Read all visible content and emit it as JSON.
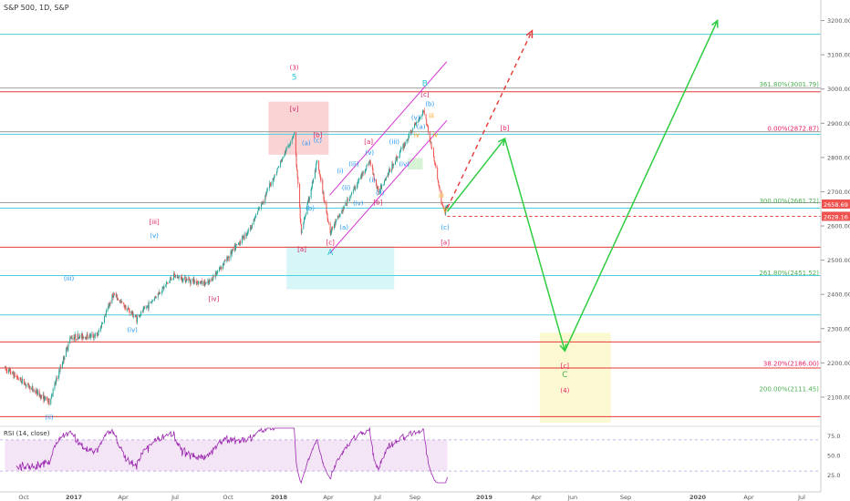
{
  "header": {
    "symbol": "S&P 500, 1D, S&P"
  },
  "rsi": {
    "title": "RSI (14, close)",
    "levels": [
      25,
      50,
      75
    ]
  },
  "colors": {
    "up": "#26a69a",
    "down": "#ef5350",
    "fib_green": "#4caf50",
    "fib_red": "#e91e63",
    "cyan": "#4dd0e1",
    "red": "#e53935",
    "rsi_line": "#9c27b0",
    "rsi_fill": "#f3e5f5",
    "price_label": "#ef5350",
    "projection": "#2ecc40"
  },
  "chart_data": {
    "type": "candlestick",
    "y_axis": {
      "min": 2020,
      "max": 3260,
      "ticks": [
        2100,
        2200,
        2300,
        2400,
        2500,
        2600,
        2700,
        2800,
        2900,
        3000,
        3100,
        3200
      ]
    },
    "x_labels": [
      "Oct",
      "2017",
      "Apr",
      "Jul",
      "Oct",
      "2018",
      "Apr",
      "Jul",
      "Sep",
      "2019",
      "Apr",
      "Jun",
      "Sep",
      "2020",
      "Apr",
      "Jul"
    ],
    "last_price": "2658.69",
    "target_price": "2628.16",
    "anchors": [
      {
        "d": "2016-08-15",
        "p": 2185
      },
      {
        "d": "2016-11-04",
        "p": 2085
      },
      {
        "d": "2016-12-13",
        "p": 2275
      },
      {
        "d": "2017-01-31",
        "p": 2280
      },
      {
        "d": "2017-03-01",
        "p": 2400
      },
      {
        "d": "2017-04-13",
        "p": 2330
      },
      {
        "d": "2017-06-19",
        "p": 2453
      },
      {
        "d": "2017-08-21",
        "p": 2430
      },
      {
        "d": "2017-11-07",
        "p": 2595
      },
      {
        "d": "2018-01-26",
        "p": 2872
      },
      {
        "d": "2018-02-08",
        "p": 2581
      },
      {
        "d": "2018-03-09",
        "p": 2786
      },
      {
        "d": "2018-04-02",
        "p": 2582
      },
      {
        "d": "2018-06-13",
        "p": 2790
      },
      {
        "d": "2018-06-28",
        "p": 2700
      },
      {
        "d": "2018-09-20",
        "p": 2940
      },
      {
        "d": "2018-10-10",
        "p": 2785
      },
      {
        "d": "2018-10-24",
        "p": 2656
      },
      {
        "d": "2018-10-29",
        "p": 2641
      },
      {
        "d": "2018-11-02",
        "p": 2658
      }
    ],
    "fib_levels": [
      {
        "label": "361.80%(3001.79)",
        "price": 3001.79,
        "color": "green"
      },
      {
        "label": "0.00%(2872.87)",
        "price": 2872.87,
        "color": "red"
      },
      {
        "label": "300.00%(2661.72)",
        "price": 2661.72,
        "color": "green"
      },
      {
        "label": "261.80%(2451.52)",
        "price": 2451.52,
        "color": "green"
      },
      {
        "label": "38.20%(2186.00)",
        "price": 2186.0,
        "color": "red"
      },
      {
        "label": "200.00%(2111.45)",
        "price": 2111.45,
        "color": "green"
      }
    ],
    "horizontal_lines": [
      {
        "price": 3160,
        "color": "cyan"
      },
      {
        "price": 3003,
        "color": "gray"
      },
      {
        "price": 2992,
        "color": "red"
      },
      {
        "price": 2875,
        "color": "gray"
      },
      {
        "price": 2868,
        "color": "cyan"
      },
      {
        "price": 2668,
        "color": "gray"
      },
      {
        "price": 2652,
        "color": "cyan"
      },
      {
        "price": 2538,
        "color": "red"
      },
      {
        "price": 2455,
        "color": "cyan"
      },
      {
        "price": 2340,
        "color": "cyan"
      },
      {
        "price": 2261,
        "color": "red"
      },
      {
        "price": 2185,
        "color": "red"
      },
      {
        "price": 2043,
        "color": "red"
      }
    ],
    "dashed_level": {
      "price": 2628.16,
      "from": "2018-11-02"
    },
    "zones": [
      {
        "d1": "2017-12-10",
        "d2": "2018-03-30",
        "p1": 2963,
        "p2": 2808,
        "color": "#f8c6c6"
      },
      {
        "d1": "2018-01-12",
        "d2": "2018-07-28",
        "p1": 2540,
        "p2": 2415,
        "color": "#c9f3f5"
      },
      {
        "d1": "2018-08-22",
        "d2": "2018-09-18",
        "p1": 2798,
        "p2": 2765,
        "color": "#c8efc8"
      },
      {
        "d1": "2019-04-20",
        "d2": "2019-08-28",
        "p1": 2288,
        "p2": 2025,
        "color": "#fbf6c2"
      }
    ],
    "channel": [
      {
        "d1": "2018-04-01",
        "p1": 2690,
        "d2": "2018-11-01",
        "p2": 3080
      },
      {
        "d1": "2018-04-01",
        "p1": 2520,
        "d2": "2018-11-01",
        "p2": 2908
      }
    ],
    "projection_path": [
      {
        "d": "2018-11-02",
        "p": 2642
      },
      {
        "d": "2019-02-15",
        "p": 2855
      },
      {
        "d": "2019-06-05",
        "p": 2235
      },
      {
        "d": "2020-03-10",
        "p": 3200
      }
    ],
    "projection_dashed": [
      {
        "d": "2018-11-02",
        "p": 2652
      },
      {
        "d": "2019-04-06",
        "p": 3170
      }
    ],
    "wave_labels": [
      {
        "t": "(3)",
        "d": "2018-01-26",
        "p": 3057,
        "c": "pink"
      },
      {
        "t": "5",
        "d": "2018-01-26",
        "p": 3027,
        "c": "teal"
      },
      {
        "t": "[v]",
        "d": "2018-01-26",
        "p": 2935,
        "c": "red"
      },
      {
        "t": "[b]",
        "d": "2018-03-10",
        "p": 2860,
        "c": "red"
      },
      {
        "t": "(c)",
        "d": "2018-03-10",
        "p": 2843,
        "c": "blue"
      },
      {
        "t": "(a)",
        "d": "2018-02-17",
        "p": 2835,
        "c": "blue"
      },
      {
        "t": "(b)",
        "d": "2018-02-24",
        "p": 2645,
        "c": "blue"
      },
      {
        "t": "[a]",
        "d": "2018-02-09",
        "p": 2525,
        "c": "red"
      },
      {
        "t": "[c]",
        "d": "2018-04-02",
        "p": 2545,
        "c": "red"
      },
      {
        "t": "A",
        "d": "2018-04-02",
        "p": 2515,
        "c": "teal"
      },
      {
        "t": "(i)",
        "d": "2018-04-20",
        "p": 2755,
        "c": "blue"
      },
      {
        "t": "(ii)",
        "d": "2018-05-01",
        "p": 2705,
        "c": "blue"
      },
      {
        "t": "(a)",
        "d": "2018-04-27",
        "p": 2590,
        "c": "blue"
      },
      {
        "t": "(iii)",
        "d": "2018-05-15",
        "p": 2775,
        "c": "blue"
      },
      {
        "t": "(iv)",
        "d": "2018-05-23",
        "p": 2660,
        "c": "blue"
      },
      {
        "t": "(v)",
        "d": "2018-06-13",
        "p": 2807,
        "c": "blue"
      },
      {
        "t": "[a]",
        "d": "2018-06-11",
        "p": 2840,
        "c": "red"
      },
      {
        "t": "[b]",
        "d": "2018-06-28",
        "p": 2662,
        "c": "red"
      },
      {
        "t": "(i)",
        "d": "2018-06-18",
        "p": 2728,
        "c": "blue"
      },
      {
        "t": "(ii)",
        "d": "2018-07-02",
        "p": 2690,
        "c": "blue"
      },
      {
        "t": "(iii)",
        "d": "2018-07-28",
        "p": 2840,
        "c": "blue"
      },
      {
        "t": "(iv)",
        "d": "2018-08-15",
        "p": 2775,
        "c": "blue"
      },
      {
        "t": "(v)",
        "d": "2018-09-05",
        "p": 2910,
        "c": "blue"
      },
      {
        "t": "B",
        "d": "2018-09-22",
        "p": 3008,
        "c": "teal"
      },
      {
        "t": "[c]",
        "d": "2018-09-22",
        "p": 2978,
        "c": "red"
      },
      {
        "t": "(b)",
        "d": "2018-10-01",
        "p": 2950,
        "c": "blue"
      },
      {
        "t": "iii",
        "d": "2018-10-04",
        "p": 2915,
        "c": "orange"
      },
      {
        "t": "(a)",
        "d": "2018-09-15",
        "p": 2883,
        "c": "blue"
      },
      {
        "t": "iv",
        "d": "2018-09-07",
        "p": 2860,
        "c": "orange"
      },
      {
        "t": "iv",
        "d": "2018-10-11",
        "p": 2860,
        "c": "orange"
      },
      {
        "t": "iii",
        "d": "2018-10-22",
        "p": 2683,
        "c": "orange"
      },
      {
        "t": "v",
        "d": "2018-10-29",
        "p": 2640,
        "c": "orange"
      },
      {
        "t": "(c)",
        "d": "2018-10-29",
        "p": 2590,
        "c": "blue"
      },
      {
        "t": "[a]",
        "d": "2018-10-29",
        "p": 2545,
        "c": "red"
      },
      {
        "t": "[b]",
        "d": "2019-02-15",
        "p": 2880,
        "c": "pink"
      },
      {
        "t": "[iii]",
        "d": "2017-05-15",
        "p": 2605,
        "c": "red"
      },
      {
        "t": "(v)",
        "d": "2017-05-15",
        "p": 2565,
        "c": "blue"
      },
      {
        "t": "(iii)",
        "d": "2016-12-10",
        "p": 2440,
        "c": "blue"
      },
      {
        "t": "(iv)",
        "d": "2017-04-05",
        "p": 2290,
        "c": "blue"
      },
      {
        "t": "[iv]",
        "d": "2017-09-01",
        "p": 2380,
        "c": "red"
      },
      {
        "t": "(ii)",
        "d": "2016-11-04",
        "p": 2035,
        "c": "blue"
      },
      {
        "t": "[c]",
        "d": "2019-06-05",
        "p": 2185,
        "c": "pink"
      },
      {
        "t": "C",
        "d": "2019-06-05",
        "p": 2158,
        "c": "green"
      },
      {
        "t": "(4)",
        "d": "2019-06-05",
        "p": 2113,
        "c": "pink"
      }
    ]
  }
}
